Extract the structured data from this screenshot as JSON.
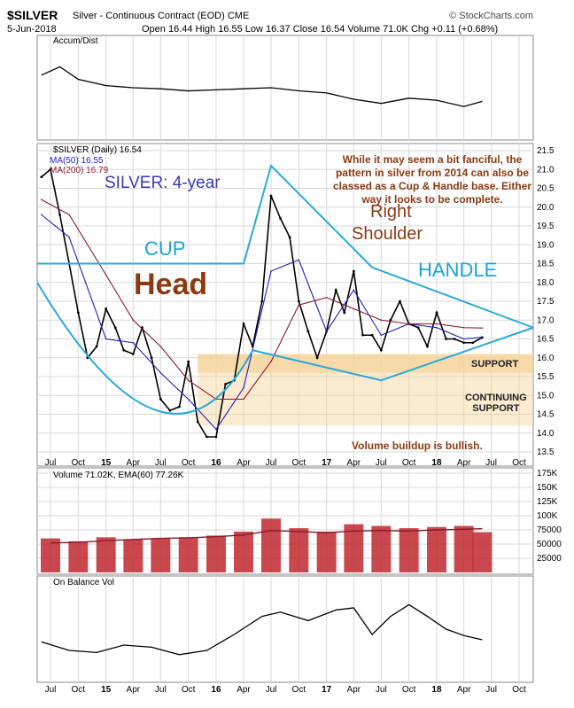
{
  "header": {
    "symbol": "$SILVER",
    "subtitle": "Silver - Continuous Contract (EOD) CME",
    "source": "© StockCharts.com",
    "date": "5-Jun-2018",
    "ohlc": "Open 16.44  High 16.55  Low 16.37  Close 16.54  Volume 71.0K  Chg +0.11 (+0.68%)"
  },
  "panels": {
    "accum_label": "Accum/Dist",
    "price_legend": "$SILVER (Daily) 16.54",
    "ma50_label": "MA(50) 16.55",
    "ma200_label": "MA(200) 16.79",
    "volume_label": "Volume 71.02K, EMA(60) 77.26K",
    "obv_label": "On Balance Vol"
  },
  "annotations": {
    "cup": "CUP",
    "head": "Head",
    "silver4": "SILVER: 4-year",
    "right": "Right",
    "shoulder": "Shoulder",
    "handle": "HANDLE",
    "note": "While it may seem a bit fanciful, the pattern in silver from 2014 can also be classed as a Cup & Handle base. Either way it looks to be complete.",
    "support": "SUPPORT",
    "continuing": "CONTINUING",
    "continuing2": "SUPPORT",
    "volume_note": "Volume buildup is bullish."
  },
  "colors": {
    "price": "#000000",
    "ma50": "#1f1fb8",
    "ma200": "#8b1a2e",
    "volume": "#c0282f",
    "pattern": "#2aa9d8",
    "support_zone": "#f6d49a",
    "grid": "#d8d8d8"
  },
  "chart_data": [
    {
      "type": "line",
      "name": "Accum/Dist",
      "x": [
        "2014-06",
        "2014-08",
        "2014-10",
        "2015-01",
        "2015-04",
        "2015-07",
        "2015-10",
        "2016-01",
        "2016-04",
        "2016-07",
        "2016-10",
        "2017-01",
        "2017-04",
        "2017-07",
        "2017-10",
        "2018-01",
        "2018-04",
        "2018-06"
      ],
      "values": [
        0.62,
        0.7,
        0.58,
        0.52,
        0.5,
        0.49,
        0.47,
        0.48,
        0.49,
        0.5,
        0.47,
        0.45,
        0.39,
        0.35,
        0.4,
        0.38,
        0.32,
        0.37
      ]
    },
    {
      "type": "line",
      "title": "$SILVER (Daily) 16.54",
      "x_ticks": [
        "Jul",
        "Oct",
        "15",
        "Apr",
        "Jul",
        "Oct",
        "16",
        "Apr",
        "Jul",
        "Oct",
        "17",
        "Apr",
        "Jul",
        "Oct",
        "18",
        "Apr",
        "Jul",
        "Oct"
      ],
      "y_ticks": [
        13.5,
        14.0,
        14.5,
        15.0,
        15.5,
        16.0,
        16.5,
        17.0,
        17.5,
        18.0,
        18.5,
        19.0,
        19.5,
        20.0,
        20.5,
        21.0,
        21.5
      ],
      "ylim": [
        13.5,
        21.5
      ],
      "series": [
        {
          "name": "$SILVER",
          "x": [
            "2014-06",
            "2014-07",
            "2014-08",
            "2014-09",
            "2014-10",
            "2014-11",
            "2014-12",
            "2015-01",
            "2015-02",
            "2015-03",
            "2015-04",
            "2015-05",
            "2015-06",
            "2015-07",
            "2015-08",
            "2015-09",
            "2015-10",
            "2015-11",
            "2015-12",
            "2016-01",
            "2016-02",
            "2016-03",
            "2016-04",
            "2016-05",
            "2016-06",
            "2016-07",
            "2016-08",
            "2016-09",
            "2016-10",
            "2016-11",
            "2016-12",
            "2017-01",
            "2017-02",
            "2017-03",
            "2017-04",
            "2017-05",
            "2017-06",
            "2017-07",
            "2017-08",
            "2017-09",
            "2017-10",
            "2017-11",
            "2017-12",
            "2018-01",
            "2018-02",
            "2018-03",
            "2018-04",
            "2018-05",
            "2018-06"
          ],
          "values": [
            20.8,
            21.0,
            19.8,
            18.5,
            17.2,
            16.0,
            16.3,
            17.3,
            16.8,
            16.2,
            16.1,
            16.8,
            16.0,
            14.9,
            14.6,
            14.7,
            15.9,
            14.3,
            13.9,
            13.9,
            15.3,
            15.4,
            16.9,
            16.3,
            17.5,
            20.3,
            19.7,
            19.2,
            17.5,
            16.7,
            16.0,
            16.7,
            17.8,
            17.2,
            18.3,
            16.6,
            16.6,
            16.2,
            17.0,
            17.5,
            16.9,
            16.8,
            16.3,
            17.2,
            16.5,
            16.5,
            16.4,
            16.4,
            16.54
          ]
        },
        {
          "name": "MA(50) 16.55",
          "x": [
            "2014-06",
            "2014-09",
            "2015-01",
            "2015-04",
            "2015-07",
            "2015-10",
            "2016-01",
            "2016-04",
            "2016-07",
            "2016-10",
            "2017-01",
            "2017-04",
            "2017-07",
            "2017-10",
            "2018-01",
            "2018-04",
            "2018-06"
          ],
          "values": [
            19.8,
            19.2,
            16.5,
            16.4,
            15.6,
            14.9,
            14.1,
            15.2,
            18.3,
            18.6,
            16.7,
            17.8,
            16.6,
            16.9,
            16.8,
            16.5,
            16.55
          ]
        },
        {
          "name": "MA(200) 16.79",
          "x": [
            "2014-06",
            "2014-09",
            "2015-01",
            "2015-04",
            "2015-07",
            "2015-10",
            "2016-01",
            "2016-04",
            "2016-07",
            "2016-10",
            "2017-01",
            "2017-04",
            "2017-07",
            "2017-10",
            "2018-01",
            "2018-04",
            "2018-06"
          ],
          "values": [
            20.2,
            19.8,
            18.2,
            17.0,
            16.3,
            15.4,
            14.9,
            14.9,
            15.9,
            17.4,
            17.6,
            17.3,
            17.0,
            16.9,
            16.9,
            16.8,
            16.79
          ]
        }
      ],
      "annotations": [
        "CUP",
        "Head",
        "SILVER: 4-year",
        "Right",
        "Shoulder",
        "HANDLE",
        "SUPPORT",
        "CONTINUING SUPPORT",
        "Volume buildup is bullish."
      ]
    },
    {
      "type": "bar",
      "title": "Volume 71.02K, EMA(60) 77.26K",
      "y_ticks": [
        "25000",
        "50000",
        "75000",
        "100K",
        "125K",
        "150K",
        "175K"
      ],
      "ylim": [
        0,
        175000
      ],
      "x": [
        "2014-07",
        "2014-10",
        "2015-01",
        "2015-04",
        "2015-07",
        "2015-10",
        "2016-01",
        "2016-04",
        "2016-07",
        "2016-10",
        "2017-01",
        "2017-04",
        "2017-07",
        "2017-10",
        "2018-01",
        "2018-04",
        "2018-06"
      ],
      "values": [
        60000,
        55000,
        62000,
        58000,
        60000,
        62000,
        65000,
        72000,
        95000,
        78000,
        72000,
        85000,
        82000,
        78000,
        80000,
        82000,
        71020
      ],
      "ema": [
        52000,
        53000,
        56000,
        58000,
        60000,
        61000,
        63000,
        66000,
        74000,
        72000,
        70000,
        73000,
        74000,
        73000,
        75000,
        76000,
        77260
      ]
    },
    {
      "type": "line",
      "name": "On Balance Vol",
      "x": [
        "2014-06",
        "2014-09",
        "2014-12",
        "2015-03",
        "2015-06",
        "2015-09",
        "2015-12",
        "2016-03",
        "2016-06",
        "2016-08",
        "2016-11",
        "2017-02",
        "2017-04",
        "2017-06",
        "2017-08",
        "2017-10",
        "2017-12",
        "2018-02",
        "2018-04",
        "2018-06"
      ],
      "values": [
        0.38,
        0.3,
        0.28,
        0.35,
        0.33,
        0.26,
        0.3,
        0.45,
        0.62,
        0.66,
        0.58,
        0.68,
        0.7,
        0.45,
        0.62,
        0.73,
        0.62,
        0.5,
        0.44,
        0.4
      ]
    }
  ]
}
